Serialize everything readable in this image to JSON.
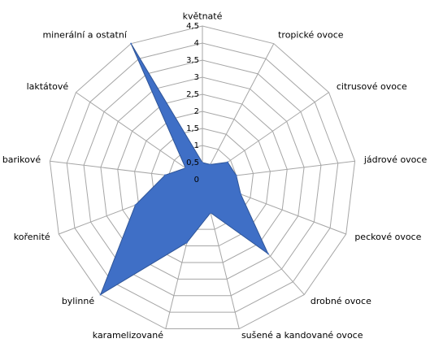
{
  "chart_data": {
    "type": "radar",
    "categories": [
      "květnaté",
      "tropické ovoce",
      "citrusové ovoce",
      "jádrové ovoce",
      "peckové ovoce",
      "drobné ovoce",
      "sušené a kandované ovoce",
      "karamelizované",
      "bylinné",
      "kořenité",
      "barikové",
      "laktátové",
      "minerální a ostatní"
    ],
    "values": [
      0.5,
      0.5,
      0.9,
      1,
      1.2,
      2.9,
      1,
      1.9,
      4.5,
      2.1,
      1.1,
      0.6,
      4.5
    ],
    "color": "#3f6fc6",
    "ylim": [
      0,
      4.5
    ],
    "yticks": [
      0,
      {
        "value": 0.5,
        "label": "0,5"
      },
      1,
      {
        "value": 1.5,
        "label": "1,5"
      },
      2,
      {
        "value": 2.5,
        "label": "2,5"
      },
      3,
      {
        "value": 3.5,
        "label": "3,5"
      },
      4,
      {
        "value": 4.5,
        "label": "4,5"
      }
    ],
    "grid": true
  }
}
